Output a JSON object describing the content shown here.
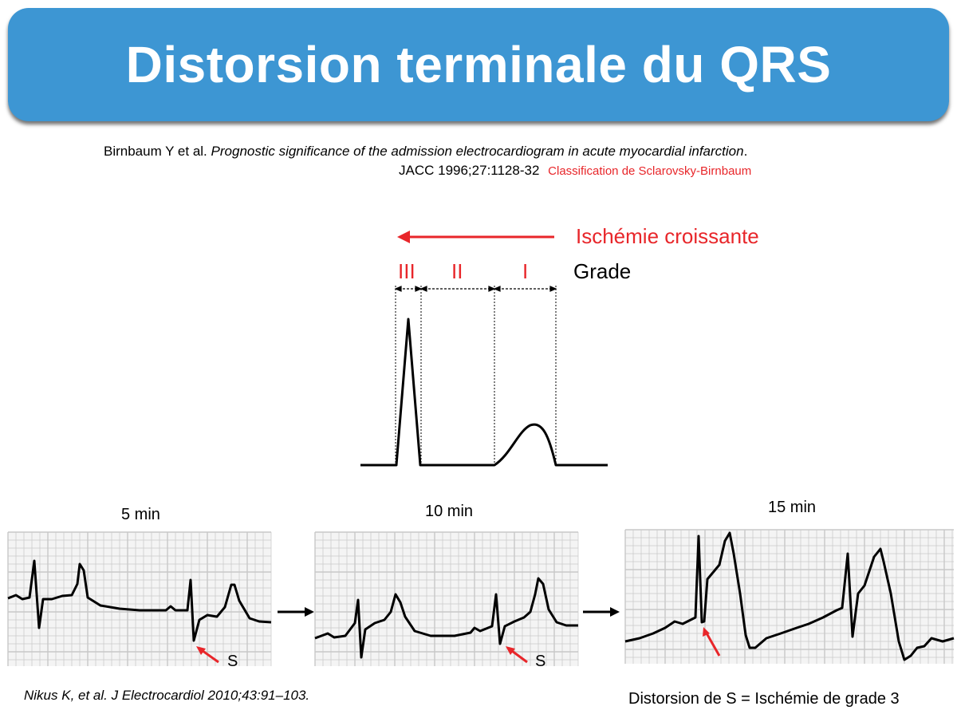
{
  "slide": {
    "title": "Distorsion terminale du QRS",
    "reference": {
      "authors": "Birnbaum Y et al.",
      "article_title": "Prognostic significance of the admission electrocardiogram in acute myocardial infarction",
      "period": ".",
      "journal": "JACC 1996;27:1128-32",
      "classification": "Classification de Sclarovsky-Birnbaum"
    },
    "diagram": {
      "arrow_label": "Ischémie croissante",
      "grade_label": "Grade",
      "grades": [
        "III",
        "II",
        "I"
      ]
    },
    "ecg_panels": [
      {
        "time": "5 min",
        "marker": "S"
      },
      {
        "time": "10 min",
        "marker": "S"
      },
      {
        "time": "15 min",
        "marker": ""
      }
    ],
    "citation": "Nikus K, et al. J Electrocardiol 2010;43:91–103.",
    "conclusion": "Distorsion de S = Ischémie de grade 3",
    "colors": {
      "banner": "#3d96d3",
      "accent_red": "#e8262a",
      "grid": "#c8c8c8"
    }
  }
}
